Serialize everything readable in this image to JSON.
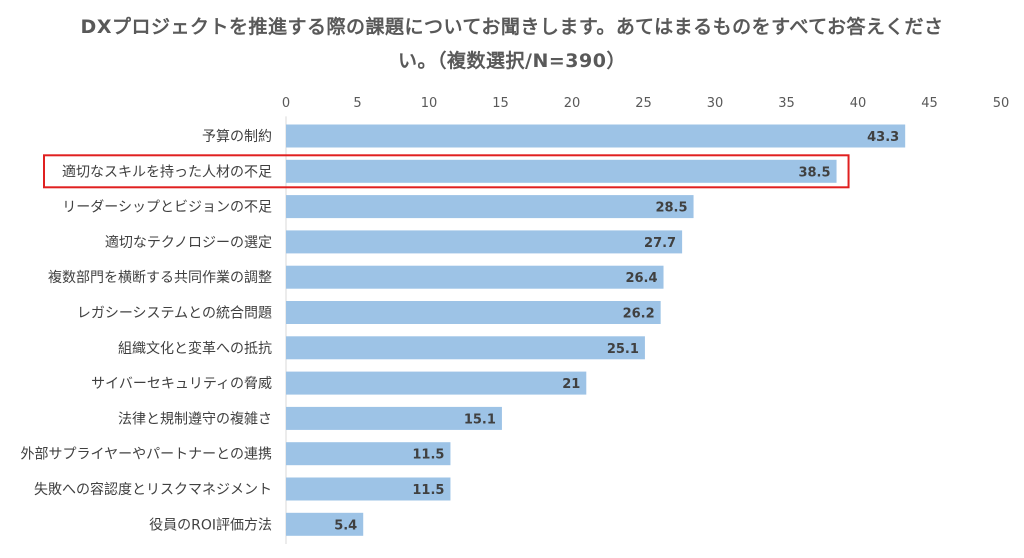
{
  "chart_data": {
    "type": "bar",
    "orientation": "horizontal",
    "title": "DXプロジェクトを推進する際の課題についてお聞きします。あてはまるものをすべてお答えください。（複数選択/N=390）",
    "categories": [
      "予算の制約",
      "適切なスキルを持った人材の不足",
      "リーダーシップとビジョンの不足",
      "適切なテクノロジーの選定",
      "複数部門を横断する共同作業の調整",
      "レガシーシステムとの統合問題",
      "組織文化と変革への抵抗",
      "サイバーセキュリティの脅威",
      "法律と規制遵守の複雑さ",
      "外部サプライヤーやパートナーとの連携",
      "失敗への容認度とリスクマネジメント",
      "役員のROI評価方法"
    ],
    "values": [
      43.3,
      38.5,
      28.5,
      27.7,
      26.4,
      26.2,
      25.1,
      21,
      15.1,
      11.5,
      11.5,
      5.4
    ],
    "value_labels": [
      "43.3",
      "38.5",
      "28.5",
      "27.7",
      "26.4",
      "26.2",
      "25.1",
      "21",
      "15.1",
      "11.5",
      "11.5",
      "5.4"
    ],
    "xlim": [
      0,
      50
    ],
    "xticks": [
      "0",
      "5",
      "10",
      "15",
      "20",
      "25",
      "30",
      "35",
      "40",
      "45",
      "50"
    ],
    "xaxis_position": "top",
    "grid": false,
    "bar_color": "#9DC3E6",
    "highlight_index": 1,
    "highlight_color": "#E02020"
  }
}
